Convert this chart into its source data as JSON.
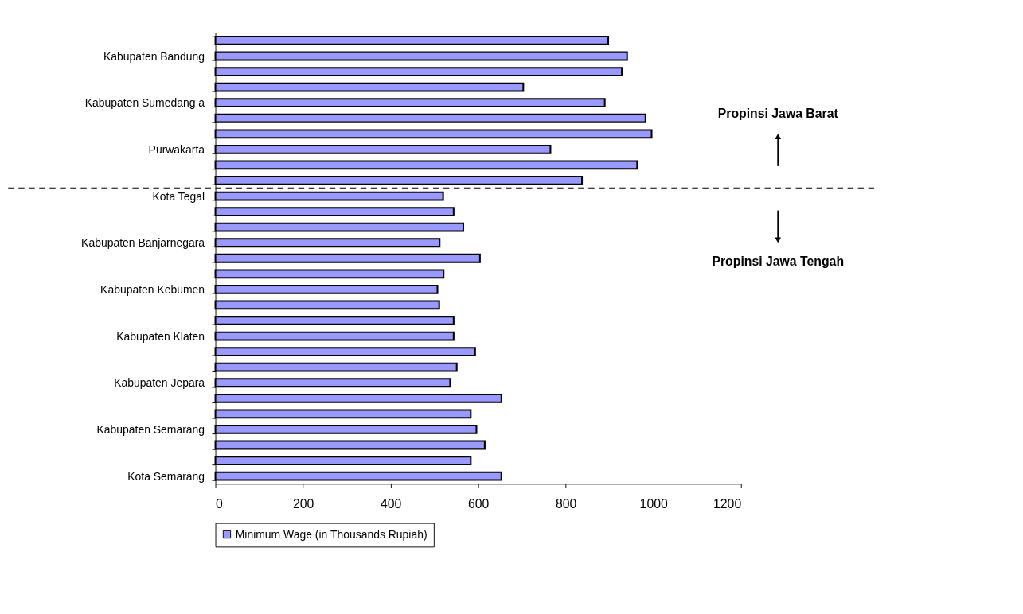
{
  "chart_data": {
    "type": "bar",
    "orientation": "horizontal",
    "categories": [
      null,
      "Kabupaten Bandung",
      null,
      null,
      "Kabupaten Sumedang a",
      null,
      null,
      "Purwakarta",
      null,
      null,
      "Kota Tegal",
      null,
      null,
      "Kabupaten Banjarnegara",
      null,
      null,
      "Kabupaten Kebumen",
      null,
      null,
      "Kabupaten Klaten",
      null,
      null,
      "Kabupaten Jepara",
      null,
      null,
      "Kabupaten Semarang",
      null,
      null,
      "Kota Semarang"
    ],
    "series": [
      {
        "name": "Minimum Wage (in Thousands Rupiah)",
        "color": "#9999ff",
        "values": [
          897,
          940,
          928,
          703,
          889,
          982,
          996,
          765,
          963,
          837,
          520,
          544,
          566,
          512,
          604,
          521,
          507,
          511,
          544,
          544,
          593,
          551,
          536,
          653,
          583,
          596,
          615,
          583,
          653
        ]
      }
    ],
    "xlim": [
      0,
      1200
    ],
    "xticks": [
      0,
      200,
      400,
      600,
      800,
      1000,
      1200
    ],
    "grid": false,
    "legend": "bottom",
    "annotations": [
      "Propinsi Jawa Barat",
      "Propinsi Jawa Tengah"
    ]
  }
}
